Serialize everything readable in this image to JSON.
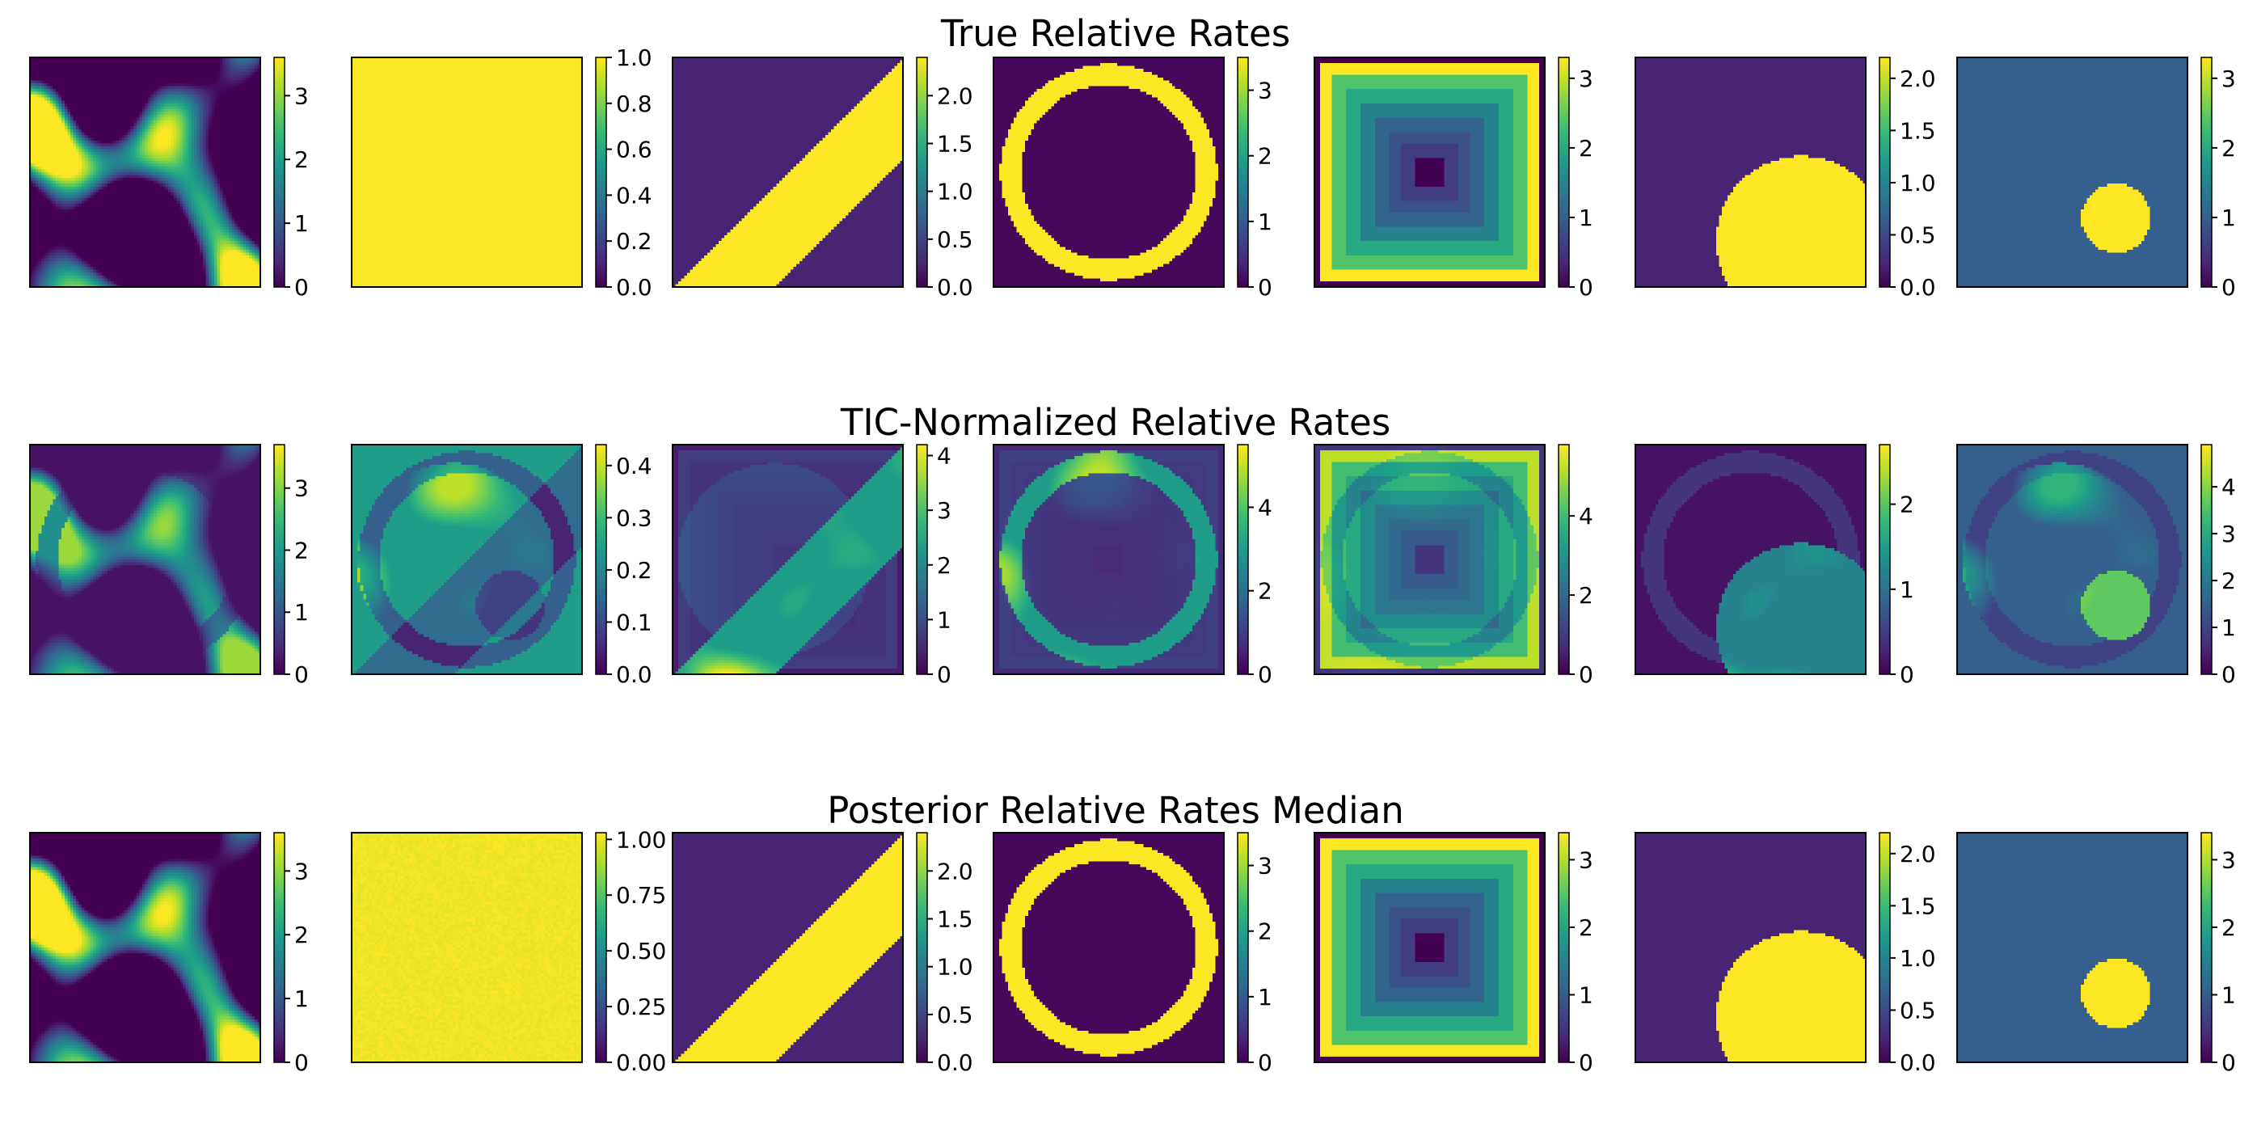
{
  "colormap": "viridis",
  "colormap_stops": [
    "#440154",
    "#482878",
    "#3e4989",
    "#31688e",
    "#26828e",
    "#1f9e89",
    "#35b779",
    "#6ece58",
    "#b5de2b",
    "#fde725"
  ],
  "chart_data": {
    "type": "heatmap",
    "rows": [
      {
        "title": "True Relative Rates",
        "panels": [
          {
            "pattern": "random_field",
            "vmax": 3.6,
            "ticks": [
              "0",
              "1",
              "2",
              "3"
            ]
          },
          {
            "pattern": "constant",
            "vmax": 1.0,
            "ticks": [
              "0.0",
              "0.2",
              "0.4",
              "0.6",
              "0.8",
              "1.0"
            ]
          },
          {
            "pattern": "diagonal_band",
            "vmax": 2.4,
            "ticks": [
              "0.0",
              "0.5",
              "1.0",
              "1.5",
              "2.0"
            ]
          },
          {
            "pattern": "ring",
            "vmax": 3.5,
            "ticks": [
              "0",
              "1",
              "2",
              "3"
            ]
          },
          {
            "pattern": "nested_squares",
            "vmax": 3.3,
            "ticks": [
              "0",
              "1",
              "2",
              "3"
            ]
          },
          {
            "pattern": "large_circle",
            "vmax": 2.2,
            "ticks": [
              "0.0",
              "0.5",
              "1.0",
              "1.5",
              "2.0"
            ]
          },
          {
            "pattern": "small_circle",
            "vmax": 3.3,
            "ticks": [
              "0",
              "1",
              "2",
              "3"
            ]
          }
        ]
      },
      {
        "title": "TIC-Normalized Relative Rates",
        "panels": [
          {
            "pattern": "mix_random",
            "vmax": 3.7,
            "ticks": [
              "0",
              "1",
              "2",
              "3"
            ]
          },
          {
            "pattern": "mix_constant",
            "vmax": 0.44,
            "ticks": [
              "0.0",
              "0.1",
              "0.2",
              "0.3",
              "0.4"
            ]
          },
          {
            "pattern": "mix_band",
            "vmax": 4.2,
            "ticks": [
              "0",
              "1",
              "2",
              "3",
              "4"
            ]
          },
          {
            "pattern": "mix_ring",
            "vmax": 5.5,
            "ticks": [
              "0",
              "2",
              "4"
            ]
          },
          {
            "pattern": "mix_squares",
            "vmax": 5.8,
            "ticks": [
              "0",
              "2",
              "4"
            ]
          },
          {
            "pattern": "mix_large_circle",
            "vmax": 2.7,
            "ticks": [
              "0",
              "1",
              "2"
            ]
          },
          {
            "pattern": "mix_small_circle",
            "vmax": 4.9,
            "ticks": [
              "0",
              "1",
              "2",
              "3",
              "4"
            ]
          }
        ]
      },
      {
        "title": "Posterior Relative Rates Median",
        "panels": [
          {
            "pattern": "random_field",
            "vmax": 3.6,
            "ticks": [
              "0",
              "1",
              "2",
              "3"
            ]
          },
          {
            "pattern": "constant",
            "vmax": 1.03,
            "ticks": [
              "0.00",
              "0.25",
              "0.50",
              "0.75",
              "1.00"
            ]
          },
          {
            "pattern": "diagonal_band",
            "vmax": 2.4,
            "ticks": [
              "0.0",
              "0.5",
              "1.0",
              "1.5",
              "2.0"
            ]
          },
          {
            "pattern": "ring",
            "vmax": 3.5,
            "ticks": [
              "0",
              "1",
              "2",
              "3"
            ]
          },
          {
            "pattern": "nested_squares",
            "vmax": 3.4,
            "ticks": [
              "0",
              "1",
              "2",
              "3"
            ]
          },
          {
            "pattern": "large_circle",
            "vmax": 2.2,
            "ticks": [
              "0.0",
              "0.5",
              "1.0",
              "1.5",
              "2.0"
            ]
          },
          {
            "pattern": "small_circle",
            "vmax": 3.4,
            "ticks": [
              "0",
              "1",
              "2",
              "3"
            ]
          }
        ]
      }
    ]
  }
}
